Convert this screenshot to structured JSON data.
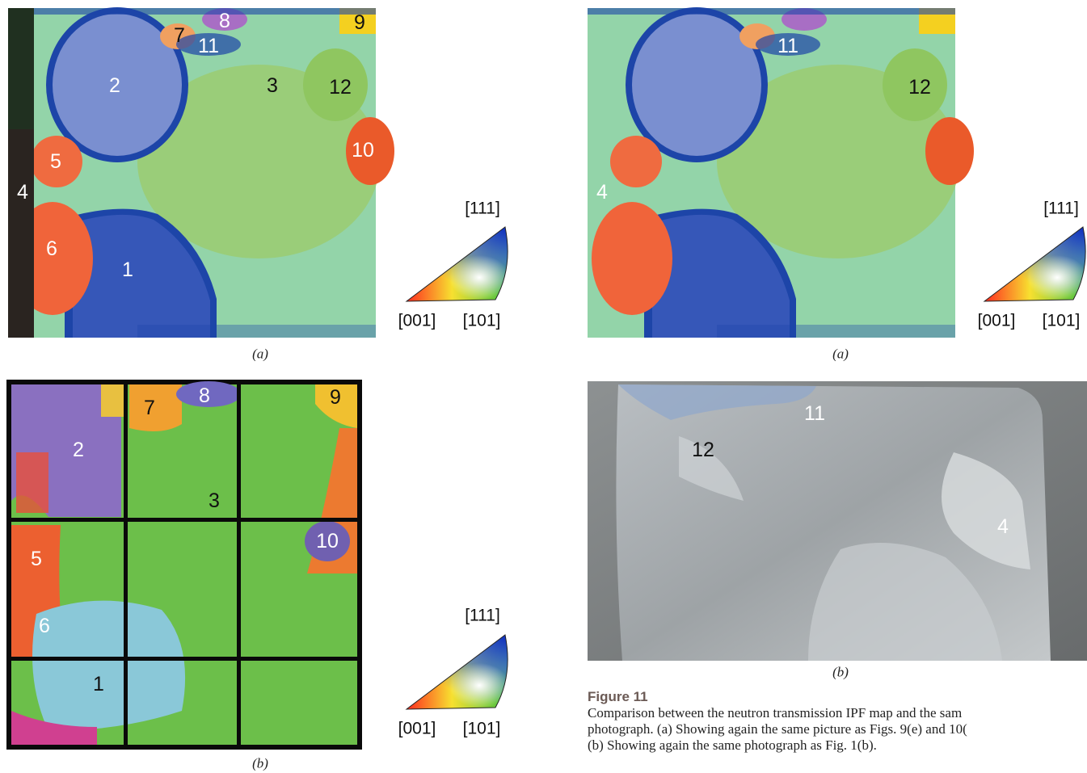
{
  "panels": {
    "top_left": {
      "label": "(a)",
      "grains": [
        "9",
        "8",
        "7",
        "11",
        "2",
        "3",
        "12",
        "10",
        "5",
        "4",
        "6",
        "1"
      ]
    },
    "bottom_left": {
      "label": "(b)",
      "grains": [
        "2",
        "7",
        "8",
        "9",
        "3",
        "10",
        "5",
        "6",
        "1"
      ]
    },
    "top_right": {
      "label": "(a)",
      "grains": [
        "11",
        "12",
        "4"
      ]
    },
    "bottom_right": {
      "label": "(b)",
      "grains": [
        "11",
        "12",
        "4"
      ]
    }
  },
  "legend": {
    "top": "[111]",
    "bottom_left": "[001]",
    "bottom_right": "[101]"
  },
  "figure": {
    "title": "Figure 11",
    "caption_lines": [
      "Comparison between the neutron transmission IPF map and the sam",
      "photograph. (a) Showing again the same picture as Figs. 9(e) and 10(",
      "(b) Showing again the same photograph as Fig. 1(b)."
    ]
  }
}
